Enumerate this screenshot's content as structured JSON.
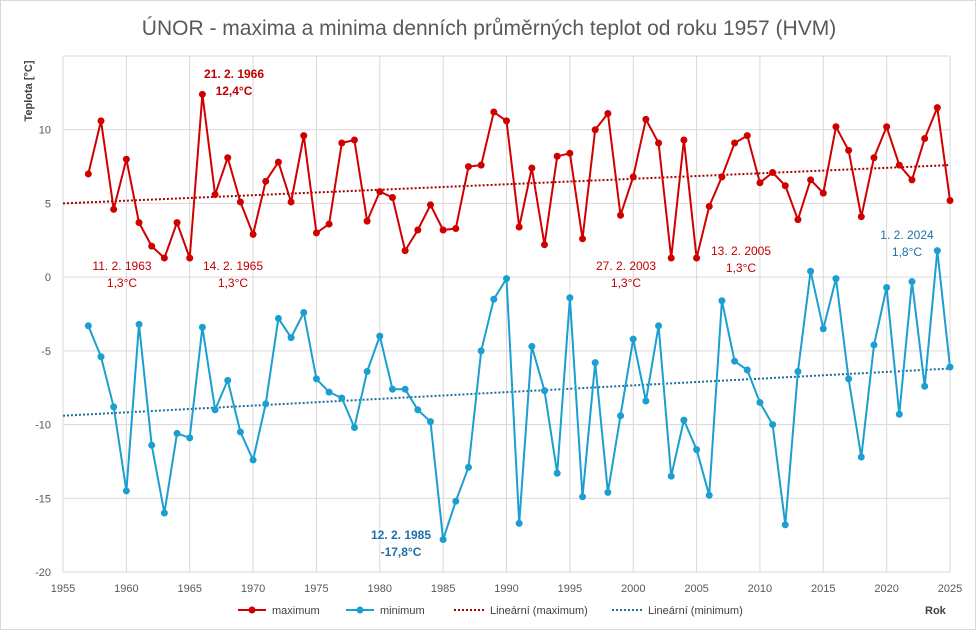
{
  "chart_data": {
    "type": "line",
    "title": "ÚNOR - maxima a minima denních průměrných teplot od roku 1957 (HVM)",
    "xlabel": "Rok",
    "ylabel": "Teplota [°C]",
    "xlim": [
      1955,
      2025
    ],
    "ylim": [
      -20,
      15
    ],
    "xticks": [
      "1955",
      "1960",
      "1965",
      "1970",
      "1975",
      "1980",
      "1985",
      "1990",
      "1995",
      "2000",
      "2005",
      "2010",
      "2015",
      "2020",
      "2025"
    ],
    "yticks": [
      "-20",
      "-15",
      "-10",
      "-5",
      "0",
      "5",
      "10"
    ],
    "grid": true,
    "legend_position": "bottom",
    "colors": {
      "maximum": "#d00000",
      "minimum": "#1b9fd0",
      "trend_max": "#a60000",
      "trend_min": "#1b6f9f",
      "grid": "#d9d9d9"
    },
    "x": [
      1957,
      1958,
      1959,
      1960,
      1961,
      1962,
      1963,
      1964,
      1965,
      1966,
      1967,
      1968,
      1969,
      1970,
      1971,
      1972,
      1973,
      1974,
      1975,
      1976,
      1977,
      1978,
      1979,
      1980,
      1981,
      1982,
      1983,
      1984,
      1985,
      1986,
      1987,
      1988,
      1989,
      1990,
      1991,
      1992,
      1993,
      1994,
      1995,
      1996,
      1997,
      1998,
      1999,
      2000,
      2001,
      2002,
      2003,
      2004,
      2005,
      2006,
      2007,
      2008,
      2009,
      2010,
      2011,
      2012,
      2013,
      2014,
      2015,
      2016,
      2017,
      2018,
      2019,
      2020,
      2021,
      2022,
      2023,
      2024,
      2025
    ],
    "series": [
      {
        "name": "maximum",
        "values": [
          7.0,
          10.6,
          4.6,
          8.0,
          3.7,
          2.1,
          1.3,
          3.7,
          1.3,
          12.4,
          5.6,
          8.1,
          5.1,
          2.9,
          6.5,
          7.8,
          5.1,
          9.6,
          3.0,
          3.6,
          9.1,
          9.3,
          3.8,
          5.8,
          5.4,
          1.8,
          3.2,
          4.9,
          3.2,
          3.3,
          7.5,
          7.6,
          11.2,
          10.6,
          3.4,
          7.4,
          2.2,
          8.2,
          8.4,
          2.6,
          10.0,
          11.1,
          4.2,
          6.8,
          10.7,
          9.1,
          1.3,
          9.3,
          1.3,
          4.8,
          6.8,
          9.1,
          9.6,
          6.4,
          7.1,
          6.2,
          3.9,
          6.6,
          5.7,
          10.2,
          8.6,
          4.1,
          8.1,
          10.2,
          7.6,
          6.6,
          9.4,
          11.5,
          5.2
        ]
      },
      {
        "name": "minimum",
        "values": [
          -3.3,
          -5.4,
          -8.8,
          -14.5,
          -3.2,
          -11.4,
          -16.0,
          -10.6,
          -10.9,
          -3.4,
          -9.0,
          -7.0,
          -10.5,
          -12.4,
          -8.6,
          -2.8,
          -4.1,
          -2.4,
          -6.9,
          -7.8,
          -8.2,
          -10.2,
          -6.4,
          -4.0,
          -7.6,
          -7.6,
          -9.0,
          -9.8,
          -17.8,
          -15.2,
          -12.9,
          -5.0,
          -1.5,
          -0.1,
          -16.7,
          -4.7,
          -7.7,
          -13.3,
          -1.4,
          -14.9,
          -5.8,
          -14.6,
          -9.4,
          -4.2,
          -8.4,
          -3.3,
          -13.5,
          -9.7,
          -11.7,
          -14.8,
          -1.6,
          -5.7,
          -6.3,
          -8.5,
          -10.0,
          -16.8,
          -6.4,
          0.4,
          -3.5,
          -0.1,
          -6.9,
          -12.2,
          -4.6,
          -0.7,
          -9.3,
          -0.3,
          -7.4,
          1.8,
          -6.1
        ]
      },
      {
        "name": "Lineární (maximum)",
        "trend": [
          [
            1955,
            5.0
          ],
          [
            2025,
            7.6
          ]
        ]
      },
      {
        "name": "Lineární (minimum)",
        "trend": [
          [
            1955,
            -9.4
          ],
          [
            2025,
            -6.2
          ]
        ]
      }
    ],
    "annotations": [
      {
        "date": "21. 2. 1966",
        "value": "12,4°C",
        "series": "maximum"
      },
      {
        "date": "11. 2. 1963",
        "value": "1,3°C",
        "series": "maximum"
      },
      {
        "date": "14. 2. 1965",
        "value": "1,3°C",
        "series": "maximum"
      },
      {
        "date": "27. 2. 2003",
        "value": "1,3°C",
        "series": "maximum"
      },
      {
        "date": "13. 2. 2005",
        "value": "1,3°C",
        "series": "maximum"
      },
      {
        "date": "1. 2. 2024",
        "value": "1,8°C",
        "series": "minimum"
      },
      {
        "date": "12. 2. 1985",
        "value": "-17,8°C",
        "series": "minimum"
      }
    ]
  }
}
